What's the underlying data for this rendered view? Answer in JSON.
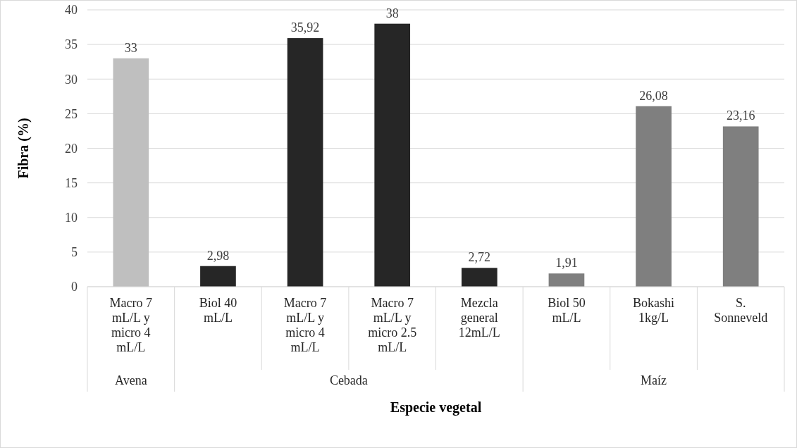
{
  "chart_data": {
    "type": "bar",
    "xlabel": "Especie vegetal",
    "ylabel": "Fibra (%)",
    "categories": [
      "Macro 7 mL/L y micro 4 mL/L",
      "Biol 40 mL/L",
      "Macro 7 mL/L y micro 4 mL/L",
      "Macro 7 mL/L y micro 2.5 mL/L",
      "Mezcla general 12mL/L",
      "Biol 50 mL/L",
      "Bokashi 1kg/L",
      "S. Sonneveld"
    ],
    "values": [
      33,
      2.98,
      35.92,
      38,
      2.72,
      1.91,
      26.08,
      23.16
    ],
    "colors": [
      "#bfbfbf",
      "#262626",
      "#262626",
      "#262626",
      "#262626",
      "#7f7f7f",
      "#7f7f7f",
      "#7f7f7f"
    ],
    "value_labels": [
      "33",
      "2,98",
      "35,92",
      "38",
      "2,72",
      "1,91",
      "26,08",
      "23,16"
    ],
    "annotations": [
      "Avena",
      "Cebada",
      "Maíz"
    ],
    "ylim": [
      0,
      40
    ],
    "yticks": [
      0,
      5,
      10,
      15,
      20,
      25,
      30,
      35,
      40
    ],
    "grid": "y"
  }
}
